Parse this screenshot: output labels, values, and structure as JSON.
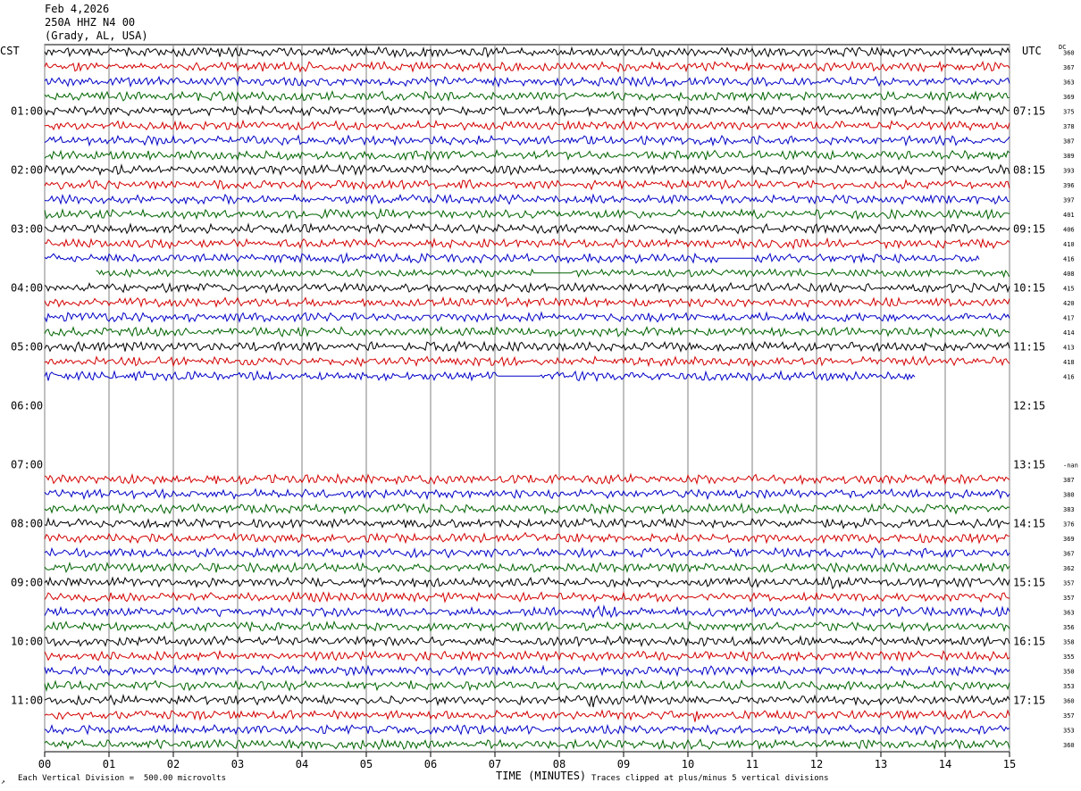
{
  "header": {
    "date": "Feb 4,2026",
    "station": "250A HHZ N4 00",
    "location": "(Grady, AL, USA)"
  },
  "left_tz": "CST",
  "right_tz": "UTC",
  "dc_header": "DC",
  "footer": {
    "scale_text": "Each Vertical Division =  500.00 microvolts",
    "clip_text": "Traces clipped at plus/minus 5 vertical divisions",
    "corner_mark": "↗"
  },
  "colors": {
    "cycle": [
      "#000000",
      "#d40000",
      "#0000c8",
      "#006400"
    ],
    "grid": "#808080",
    "frame": "#000000"
  },
  "chart_data": {
    "type": "line",
    "xlabel": "TIME (MINUTES)",
    "xlim": [
      0,
      15
    ],
    "x_ticks": [
      "00",
      "01",
      "02",
      "03",
      "04",
      "05",
      "06",
      "07",
      "08",
      "09",
      "10",
      "11",
      "12",
      "13",
      "14",
      "15"
    ],
    "row_count": 48,
    "left_time_labels": [
      {
        "row": 4,
        "text": "01:00"
      },
      {
        "row": 8,
        "text": "02:00"
      },
      {
        "row": 12,
        "text": "03:00"
      },
      {
        "row": 16,
        "text": "04:00"
      },
      {
        "row": 20,
        "text": "05:00"
      },
      {
        "row": 24,
        "text": "06:00"
      },
      {
        "row": 28,
        "text": "07:00"
      },
      {
        "row": 32,
        "text": "08:00"
      },
      {
        "row": 36,
        "text": "09:00"
      },
      {
        "row": 40,
        "text": "10:00"
      },
      {
        "row": 44,
        "text": "11:00"
      }
    ],
    "right_time_labels": [
      {
        "row": 4,
        "text": "07:15"
      },
      {
        "row": 8,
        "text": "08:15"
      },
      {
        "row": 12,
        "text": "09:15"
      },
      {
        "row": 16,
        "text": "10:15"
      },
      {
        "row": 20,
        "text": "11:15"
      },
      {
        "row": 24,
        "text": "12:15"
      },
      {
        "row": 28,
        "text": "13:15"
      },
      {
        "row": 32,
        "text": "14:15"
      },
      {
        "row": 36,
        "text": "15:15"
      },
      {
        "row": 40,
        "text": "16:15"
      },
      {
        "row": 44,
        "text": "17:15"
      }
    ],
    "traces": [
      {
        "row": 0,
        "dc": "360",
        "start": 0,
        "end": 15,
        "amp": 0.6
      },
      {
        "row": 1,
        "dc": "367",
        "start": 0,
        "end": 15,
        "amp": 0.6
      },
      {
        "row": 2,
        "dc": "363",
        "start": 0,
        "end": 15,
        "amp": 0.6
      },
      {
        "row": 3,
        "dc": "369",
        "start": 0,
        "end": 15,
        "amp": 0.6
      },
      {
        "row": 4,
        "dc": "375",
        "start": 0,
        "end": 15,
        "amp": 0.6
      },
      {
        "row": 5,
        "dc": "378",
        "start": 0,
        "end": 15,
        "amp": 0.6
      },
      {
        "row": 6,
        "dc": "387",
        "start": 0,
        "end": 15,
        "amp": 0.6
      },
      {
        "row": 7,
        "dc": "389",
        "start": 0,
        "end": 15,
        "amp": 0.6,
        "bursts": [
          {
            "t": 1.7,
            "w": 0.12,
            "a": 2.8
          }
        ]
      },
      {
        "row": 8,
        "dc": "393",
        "start": 0,
        "end": 15,
        "amp": 0.6
      },
      {
        "row": 9,
        "dc": "396",
        "start": 0,
        "end": 15,
        "amp": 0.6
      },
      {
        "row": 10,
        "dc": "397",
        "start": 0,
        "end": 15,
        "amp": 0.6
      },
      {
        "row": 11,
        "dc": "401",
        "start": 0,
        "end": 15,
        "amp": 0.6
      },
      {
        "row": 12,
        "dc": "406",
        "start": 0,
        "end": 15,
        "amp": 0.6
      },
      {
        "row": 13,
        "dc": "410",
        "start": 0,
        "end": 15,
        "amp": 0.6
      },
      {
        "row": 14,
        "dc": "416",
        "start": 0,
        "end": 14.55,
        "amp": 0.6,
        "gaps": [
          [
            10.45,
            11.05
          ]
        ]
      },
      {
        "row": 15,
        "dc": "408",
        "start": 0.8,
        "end": 15,
        "amp": 0.5,
        "gaps": [
          [
            7.6,
            8.2
          ]
        ]
      },
      {
        "row": 16,
        "dc": "415",
        "start": 0,
        "end": 15,
        "amp": 0.6
      },
      {
        "row": 17,
        "dc": "420",
        "start": 0,
        "end": 15,
        "amp": 0.6
      },
      {
        "row": 18,
        "dc": "417",
        "start": 0,
        "end": 15,
        "amp": 0.6
      },
      {
        "row": 19,
        "dc": "414",
        "start": 0,
        "end": 15,
        "amp": 0.6
      },
      {
        "row": 20,
        "dc": "413",
        "start": 0,
        "end": 15,
        "amp": 0.6
      },
      {
        "row": 21,
        "dc": "418",
        "start": 0,
        "end": 15,
        "amp": 0.6
      },
      {
        "row": 22,
        "dc": "416",
        "start": 0,
        "end": 13.55,
        "amp": 0.6,
        "gaps": [
          [
            7.05,
            7.7
          ]
        ]
      },
      {
        "row": 28,
        "dc": "-nan",
        "start": 0,
        "end": 0,
        "amp": 0
      },
      {
        "row": 29,
        "dc": "387",
        "start": 0,
        "end": 15,
        "amp": 0.6,
        "bursts": [
          {
            "t": 13.8,
            "w": 0.1,
            "a": 1.3
          }
        ]
      },
      {
        "row": 30,
        "dc": "380",
        "start": 0,
        "end": 15,
        "amp": 0.6
      },
      {
        "row": 31,
        "dc": "383",
        "start": 0,
        "end": 15,
        "amp": 0.6
      },
      {
        "row": 32,
        "dc": "376",
        "start": 0,
        "end": 15,
        "amp": 0.6
      },
      {
        "row": 33,
        "dc": "369",
        "start": 0,
        "end": 15,
        "amp": 0.6,
        "bursts": [
          {
            "t": 7.45,
            "w": 0.12,
            "a": 1.8
          }
        ]
      },
      {
        "row": 34,
        "dc": "367",
        "start": 0,
        "end": 15,
        "amp": 0.6
      },
      {
        "row": 35,
        "dc": "362",
        "start": 0,
        "end": 15,
        "amp": 0.6
      },
      {
        "row": 36,
        "dc": "357",
        "start": 0,
        "end": 15,
        "amp": 0.6,
        "bursts": [
          {
            "t": 12.35,
            "w": 0.25,
            "a": 1.8
          }
        ]
      },
      {
        "row": 37,
        "dc": "357",
        "start": 0,
        "end": 15,
        "amp": 0.6
      },
      {
        "row": 38,
        "dc": "363",
        "start": 0,
        "end": 15,
        "amp": 0.6,
        "bursts": [
          {
            "t": 8.75,
            "w": 0.3,
            "a": 1.6
          }
        ]
      },
      {
        "row": 39,
        "dc": "356",
        "start": 0,
        "end": 15,
        "amp": 0.6
      },
      {
        "row": 40,
        "dc": "358",
        "start": 0,
        "end": 15,
        "amp": 0.6
      },
      {
        "row": 41,
        "dc": "355",
        "start": 0,
        "end": 15,
        "amp": 0.6
      },
      {
        "row": 42,
        "dc": "350",
        "start": 0,
        "end": 15,
        "amp": 0.6
      },
      {
        "row": 43,
        "dc": "353",
        "start": 0,
        "end": 15,
        "amp": 0.6
      },
      {
        "row": 44,
        "dc": "360",
        "start": 0,
        "end": 15,
        "amp": 0.6,
        "bursts": [
          {
            "t": 8.5,
            "w": 0.15,
            "a": 1.4
          }
        ]
      },
      {
        "row": 45,
        "dc": "357",
        "start": 0,
        "end": 15,
        "amp": 0.6,
        "bursts": [
          {
            "t": 10.05,
            "w": 0.18,
            "a": 3.0
          }
        ]
      },
      {
        "row": 46,
        "dc": "353",
        "start": 0,
        "end": 15,
        "amp": 0.6
      },
      {
        "row": 47,
        "dc": "360",
        "start": 0,
        "end": 15,
        "amp": 0.6
      }
    ]
  }
}
